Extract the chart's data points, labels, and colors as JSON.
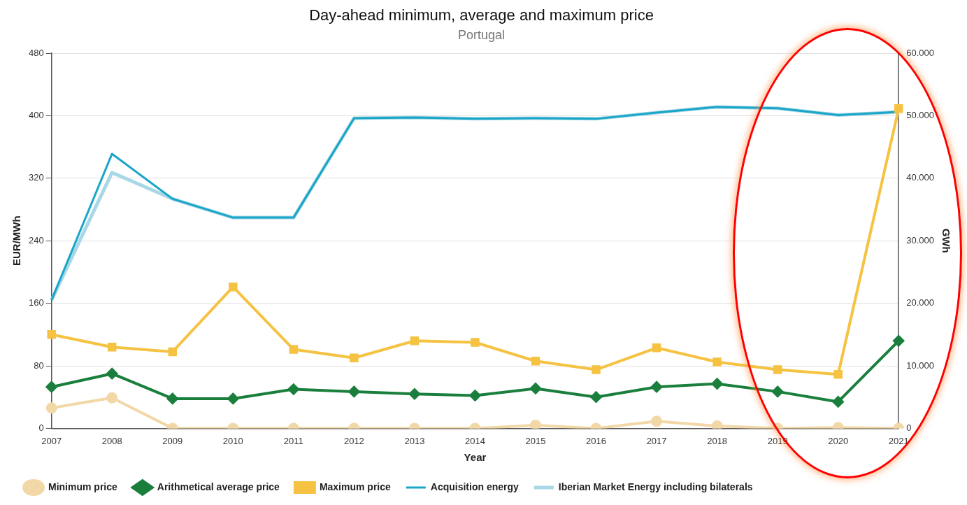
{
  "chart_data": {
    "type": "line",
    "title": "Day-ahead minimum, average and maximum price",
    "subtitle": "Portugal",
    "xlabel": "Year",
    "ylabel": "EUR/MWh",
    "y2label": "GWh",
    "categories": [
      "2007",
      "2008",
      "2009",
      "2010",
      "2011",
      "2012",
      "2013",
      "2014",
      "2015",
      "2016",
      "2017",
      "2018",
      "2019",
      "2020",
      "2021"
    ],
    "series": [
      {
        "name": "Minimum price",
        "color": "#f2d8a7",
        "marker": "circle",
        "values": [
          26,
          39,
          0,
          0,
          0,
          0,
          0,
          0,
          4,
          0,
          9,
          3,
          0,
          1,
          0
        ]
      },
      {
        "name": "Arithmetical average price",
        "color": "#1a7f3c",
        "marker": "diamond",
        "values": [
          53,
          70,
          38,
          38,
          50,
          47,
          44,
          42,
          51,
          40,
          53,
          57,
          47,
          34,
          112
        ]
      },
      {
        "name": "Maximum price",
        "color": "#f5c242",
        "marker": "square",
        "values": [
          120,
          104,
          98,
          181,
          101,
          90,
          112,
          110,
          86,
          75,
          103,
          85,
          75,
          69,
          409
        ]
      },
      {
        "name": "Acquisition energy",
        "color": "#1aa6c8",
        "marker": "none",
        "axis": "y2",
        "values": [
          20500,
          43900,
          36700,
          33700,
          33700,
          49600,
          49700,
          49500,
          49600,
          49500,
          50500,
          51400,
          51200,
          50100,
          50600
        ]
      },
      {
        "name": "Iberian Market Energy including bilaterals",
        "color": "#a8d8e6",
        "marker": "none",
        "axis": "y2",
        "values": [
          20500,
          40900,
          36700,
          33700,
          33700,
          49600,
          49700,
          49500,
          49600,
          49500,
          50500,
          51400,
          51200,
          50100,
          50600
        ]
      }
    ],
    "ylim": [
      0,
      480
    ],
    "yticks": [
      0,
      80,
      160,
      240,
      320,
      400,
      480
    ],
    "y2lim": [
      0,
      60000
    ],
    "y2ticks": [
      0,
      {
        "value": 10000,
        "label": "10.000"
      },
      {
        "value": 20000,
        "label": "20.000"
      },
      {
        "value": 30000,
        "label": "30.000"
      },
      {
        "value": 40000,
        "label": "40.000"
      },
      {
        "value": 50000,
        "label": "50.000"
      },
      {
        "value": 60000,
        "label": "60.000"
      }
    ],
    "grid": "y",
    "legend": "bottom"
  }
}
